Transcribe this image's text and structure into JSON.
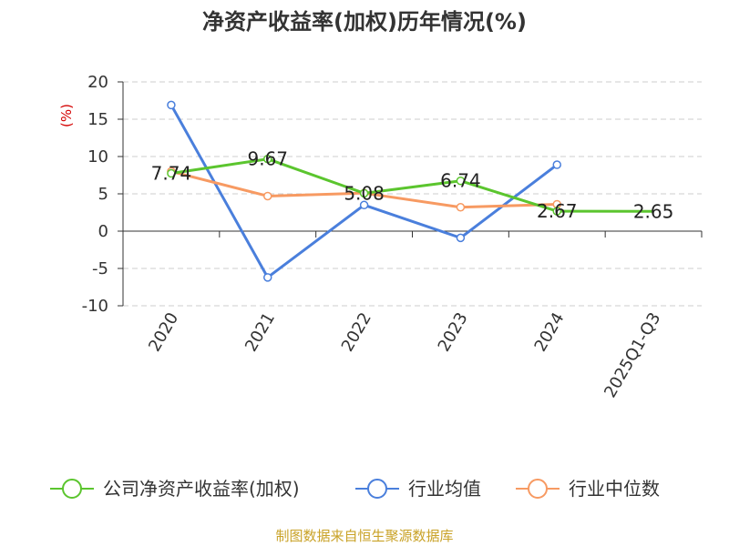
{
  "chart_data": {
    "type": "line",
    "title": "净资产收益率(加权)历年情况(%)",
    "ylabel": "(%)",
    "xlabel": "",
    "categories": [
      "2020",
      "2021",
      "2022",
      "2023",
      "2024",
      "2025Q1-Q3"
    ],
    "ylim": [
      -10,
      20
    ],
    "yticks": [
      20,
      15,
      10,
      5,
      0,
      -5,
      -10
    ],
    "grid": true,
    "legend_position": "bottom",
    "series": [
      {
        "name": "公司净资产收益率(加权)",
        "color": "#5bc52e",
        "values": [
          7.74,
          9.67,
          5.08,
          6.74,
          2.67,
          2.65
        ],
        "labels": [
          "7.74",
          "9.67",
          "5.08",
          "6.74",
          "2.67",
          "2.65"
        ]
      },
      {
        "name": "行业均值",
        "color": "#4a7fdc",
        "values": [
          16.9,
          -6.2,
          3.5,
          -0.9,
          8.9,
          null
        ]
      },
      {
        "name": "行业中位数",
        "color": "#f79a62",
        "values": [
          8.0,
          4.7,
          5.1,
          3.2,
          3.6,
          null
        ]
      }
    ]
  },
  "source": "制图数据来自恒生聚源数据库"
}
